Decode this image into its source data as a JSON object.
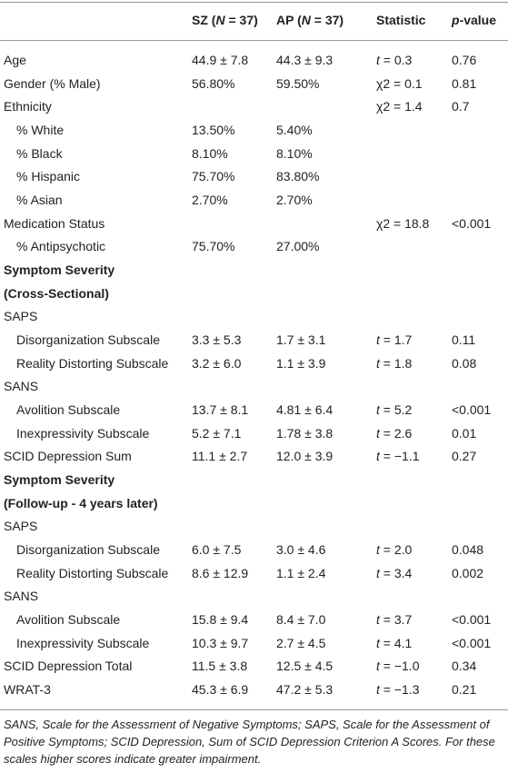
{
  "table": {
    "header": [
      null,
      [
        "SZ (",
        {
          "em": "N"
        },
        " = 37)"
      ],
      [
        "AP (",
        {
          "em": "N"
        },
        " = 37)"
      ],
      "Statistic",
      [
        {
          "em": "p"
        },
        "-value"
      ]
    ],
    "rows": [
      {
        "label": "Age",
        "cells": [
          "44.9 ± 7.8",
          "44.3 ± 9.3",
          [
            {
              "em": "t"
            },
            " = 0.3"
          ],
          "0.76"
        ]
      },
      {
        "label": "Gender (% Male)",
        "cells": [
          "56.80%",
          "59.50%",
          "χ2 = 0.1",
          "0.81"
        ]
      },
      {
        "label": "Ethnicity",
        "cells": [
          null,
          null,
          "χ2 = 1.4",
          "0.7"
        ]
      },
      {
        "label": "% White",
        "indent": true,
        "cells": [
          "13.50%",
          "5.40%",
          null,
          null
        ]
      },
      {
        "label": "% Black",
        "indent": true,
        "cells": [
          "8.10%",
          "8.10%",
          null,
          null
        ]
      },
      {
        "label": "% Hispanic",
        "indent": true,
        "cells": [
          "75.70%",
          "83.80%",
          null,
          null
        ]
      },
      {
        "label": "% Asian",
        "indent": true,
        "cells": [
          "2.70%",
          "2.70%",
          null,
          null
        ]
      },
      {
        "label": "Medication Status",
        "cells": [
          null,
          null,
          "χ2 = 18.8",
          "<0.001"
        ]
      },
      {
        "label": "% Antipsychotic",
        "indent": true,
        "cells": [
          "75.70%",
          "27.00%",
          null,
          null
        ]
      },
      {
        "label": "Symptom Severity",
        "bold": true,
        "cells": [
          null,
          null,
          null,
          null
        ]
      },
      {
        "label": "(Cross-Sectional)",
        "bold": true,
        "cells": [
          null,
          null,
          null,
          null
        ]
      },
      {
        "label": "SAPS",
        "cells": [
          null,
          null,
          null,
          null
        ]
      },
      {
        "label": "Disorganization Subscale",
        "indent": true,
        "cells": [
          "3.3 ± 5.3",
          "1.7 ± 3.1",
          [
            {
              "em": "t"
            },
            " = 1.7"
          ],
          "0.11"
        ]
      },
      {
        "label": "Reality Distorting Subscale",
        "indent": true,
        "cells": [
          "3.2 ± 6.0",
          "1.1 ± 3.9",
          [
            {
              "em": "t"
            },
            " = 1.8"
          ],
          "0.08"
        ]
      },
      {
        "label": "SANS",
        "cells": [
          null,
          null,
          null,
          null
        ]
      },
      {
        "label": "Avolition Subscale",
        "indent": true,
        "cells": [
          "13.7 ± 8.1",
          "4.81 ± 6.4",
          [
            {
              "em": "t"
            },
            " = 5.2"
          ],
          "<0.001"
        ]
      },
      {
        "label": "Inexpressivity Subscale",
        "indent": true,
        "cells": [
          "5.2 ± 7.1",
          "1.78 ± 3.8",
          [
            {
              "em": "t"
            },
            " = 2.6"
          ],
          "0.01"
        ]
      },
      {
        "label": "SCID Depression Sum",
        "cells": [
          "11.1 ± 2.7",
          "12.0 ± 3.9",
          [
            {
              "em": "t"
            },
            " = −1.1"
          ],
          "0.27"
        ]
      },
      {
        "label": "Symptom Severity",
        "bold": true,
        "cells": [
          null,
          null,
          null,
          null
        ]
      },
      {
        "label": "(Follow-up - 4 years later)",
        "bold": true,
        "cells": [
          null,
          null,
          null,
          null
        ]
      },
      {
        "label": "SAPS",
        "cells": [
          null,
          null,
          null,
          null
        ]
      },
      {
        "label": "Disorganization Subscale",
        "indent": true,
        "cells": [
          "6.0 ± 7.5",
          "3.0 ± 4.6",
          [
            {
              "em": "t"
            },
            " = 2.0"
          ],
          "0.048"
        ]
      },
      {
        "label": "Reality Distorting Subscale",
        "indent": true,
        "cells": [
          "8.6 ± 12.9",
          "1.1 ± 2.4",
          [
            {
              "em": "t"
            },
            " = 3.4"
          ],
          "0.002"
        ]
      },
      {
        "label": "SANS",
        "cells": [
          null,
          null,
          null,
          null
        ]
      },
      {
        "label": "Avolition Subscale",
        "indent": true,
        "cells": [
          "15.8 ± 9.4",
          "8.4 ± 7.0",
          [
            {
              "em": "t"
            },
            " = 3.7"
          ],
          "<0.001"
        ]
      },
      {
        "label": "Inexpressivity Subscale",
        "indent": true,
        "cells": [
          "10.3 ± 9.7",
          "2.7 ± 4.5",
          [
            {
              "em": "t"
            },
            " = 4.1"
          ],
          "<0.001"
        ]
      },
      {
        "label": "SCID Depression Total",
        "cells": [
          "11.5 ± 3.8",
          "12.5 ± 4.5",
          [
            {
              "em": "t"
            },
            " = −1.0"
          ],
          "0.34"
        ]
      },
      {
        "label": "WRAT-3",
        "cells": [
          "45.3 ± 6.9",
          "47.2 ± 5.3",
          [
            {
              "em": "t"
            },
            " = −1.3"
          ],
          "0.21"
        ]
      }
    ],
    "footnote": "SANS, Scale for the Assessment of Negative Symptoms; SAPS, Scale for the Assessment of Positive Symptoms; SCID Depression, Sum of SCID Depression Criterion A Scores. For these scales higher scores indicate greater impairment."
  }
}
